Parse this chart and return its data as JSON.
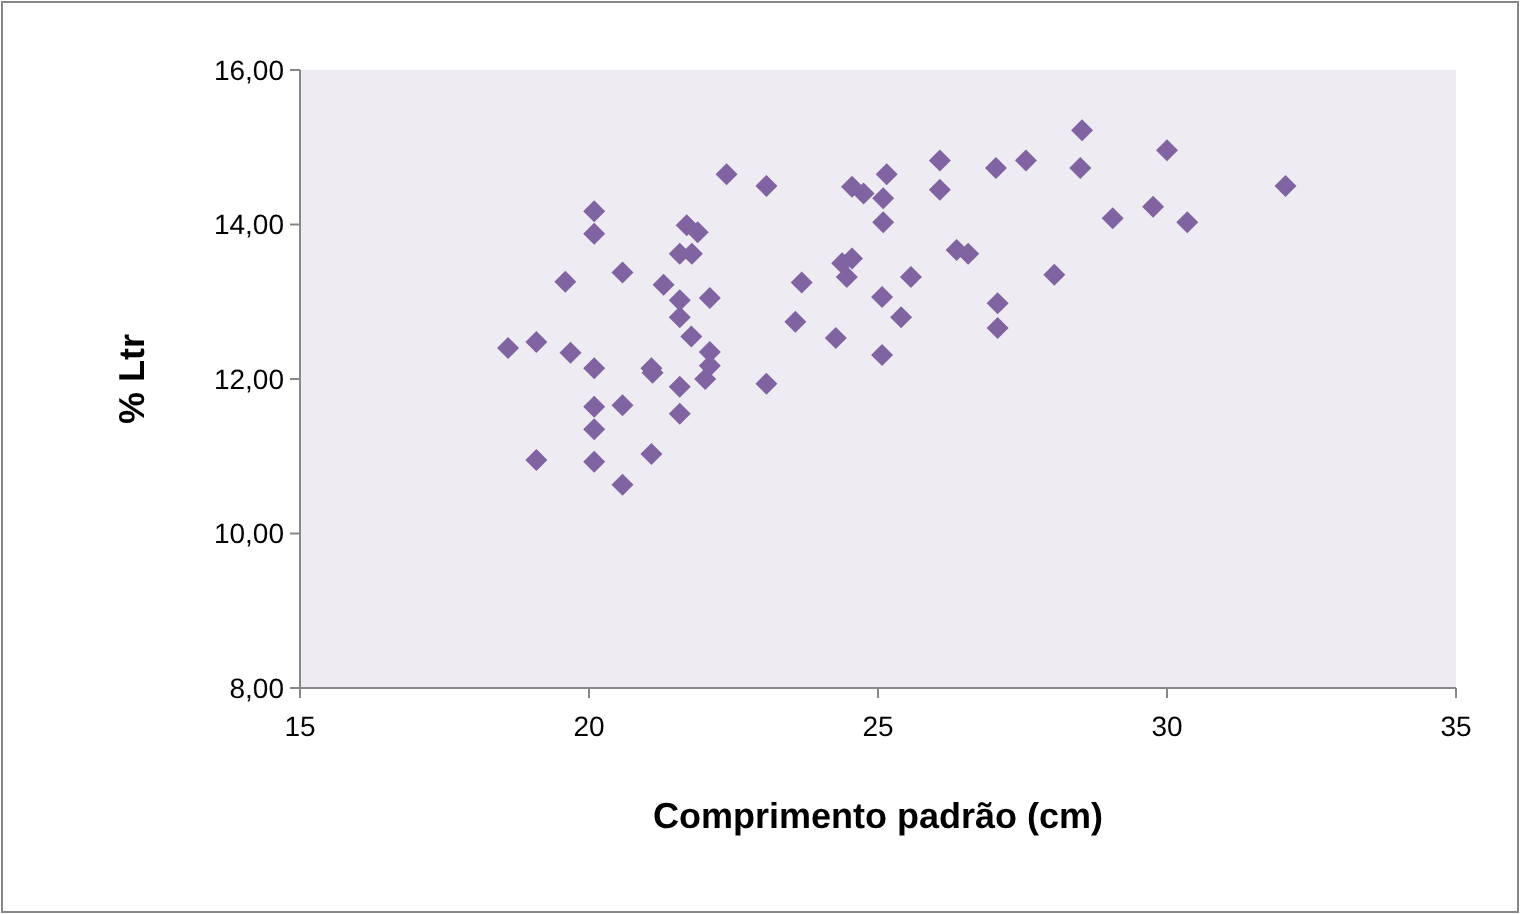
{
  "chart_data": {
    "type": "scatter",
    "xlabel": "Comprimento padrão (cm)",
    "ylabel": "% Ltr",
    "xlim": [
      15,
      35
    ],
    "xticks": [
      15,
      20,
      25,
      30,
      35
    ],
    "ylim": [
      8,
      16
    ],
    "yticks": [
      {
        "value": 8,
        "label": "8,00"
      },
      {
        "value": 10,
        "label": "10,00"
      },
      {
        "value": 12,
        "label": "12,00"
      },
      {
        "value": 14,
        "label": "14,00"
      },
      {
        "value": 16,
        "label": "16,00"
      }
    ],
    "marker": "diamond",
    "series": [
      {
        "color": "#8064a2",
        "x": [
          20.09,
          20.09,
          21.69,
          21.88,
          21.57,
          21.78,
          19.59,
          20.58,
          21.29,
          21.57,
          21.57,
          21.77,
          18.6,
          19.09,
          19.68,
          20.09,
          21.08,
          21.1,
          21.57,
          20.09,
          20.58,
          21.57,
          20.09,
          19.09,
          20.09,
          21.08,
          20.58,
          22.38,
          23.07,
          24.55,
          24.75,
          25.09,
          25.15,
          26.07,
          25.09,
          26.36,
          26.56,
          28.05,
          23.68,
          24.38,
          24.55,
          24.46,
          25.57,
          22.09,
          25.07,
          27.07,
          23.57,
          25.4,
          27.07,
          24.27,
          22.09,
          22.09,
          22.01,
          25.07,
          23.07,
          29.06,
          29.76,
          30.35,
          32.05,
          27.56,
          27.04,
          26.07,
          28.5,
          28.53,
          30.0
        ],
        "values": [
          14.17,
          13.88,
          13.99,
          13.9,
          13.62,
          13.62,
          13.26,
          13.38,
          13.22,
          13.02,
          12.8,
          12.55,
          12.4,
          12.48,
          12.34,
          12.14,
          12.14,
          12.08,
          11.9,
          11.64,
          11.66,
          11.55,
          11.35,
          10.95,
          10.93,
          11.03,
          10.63,
          14.65,
          14.5,
          14.49,
          14.4,
          14.34,
          14.65,
          14.45,
          14.03,
          13.67,
          13.62,
          13.35,
          13.25,
          13.5,
          13.56,
          13.32,
          13.32,
          13.05,
          13.06,
          12.98,
          12.74,
          12.8,
          12.66,
          12.53,
          12.35,
          12.17,
          12.0,
          12.31,
          11.94,
          14.08,
          14.23,
          14.03,
          14.5,
          14.83,
          14.73,
          14.83,
          14.73,
          15.22,
          14.96
        ]
      }
    ]
  }
}
